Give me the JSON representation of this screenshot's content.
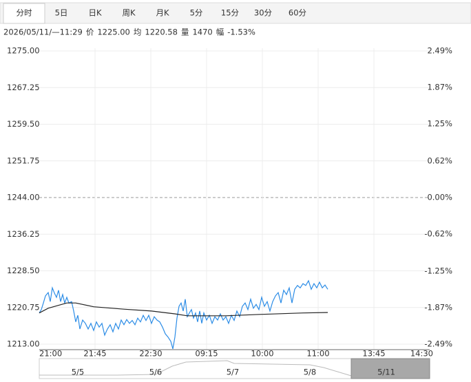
{
  "header": {
    "tabs": [
      "分时",
      "5日",
      "日K",
      "周K",
      "月K",
      "5分",
      "15分",
      "30分",
      "60分"
    ],
    "info": [
      "2026/05/11/—11:29",
      "价",
      "1225.00",
      "均",
      "1220.58",
      "量",
      "1470",
      "幅",
      "-1.53%"
    ]
  },
  "chart_data": {
    "type": "line",
    "series": [
      {
        "name": "价",
        "color": "#2b8ce6",
        "x": [
          0,
          0.037,
          0.074,
          0.111,
          0.16,
          0.198,
          0.235,
          0.272,
          0.309,
          0.346,
          0.383,
          0.42,
          0.457,
          0.494,
          0.531,
          0.58,
          0.617,
          0.654,
          0.691,
          0.728,
          0.778,
          0.827,
          0.877,
          0.926,
          0.975,
          1.025,
          1.074,
          1.123,
          1.173,
          1.222,
          1.272,
          1.321,
          1.37,
          1.42,
          1.469,
          1.519,
          1.568,
          1.617,
          1.667,
          1.716,
          1.765,
          1.815,
          1.864,
          1.914,
          1.963,
          2.012,
          2.062,
          2.111,
          2.16,
          2.21,
          2.259,
          2.309,
          2.358,
          2.395,
          2.432,
          2.469,
          2.506,
          2.543,
          2.58,
          2.617,
          2.654,
          2.691,
          2.728,
          2.765,
          2.802,
          2.84,
          2.877,
          2.914,
          2.951,
          3.0,
          3.049,
          3.099,
          3.148,
          3.198,
          3.247,
          3.296,
          3.346,
          3.395,
          3.444,
          3.494,
          3.543,
          3.593,
          3.642,
          3.691,
          3.741,
          3.79,
          3.84,
          3.889,
          3.938,
          3.988,
          4.037,
          4.086,
          4.136,
          4.185,
          4.235,
          4.284,
          4.333,
          4.383,
          4.432,
          4.481,
          4.531,
          4.58,
          4.63,
          4.679,
          4.728,
          4.778,
          4.827,
          4.877,
          4.926,
          4.975,
          5.025,
          5.074,
          5.123,
          5.173
        ],
        "values": [
          1219.6,
          1220.3,
          1221.7,
          1223.2,
          1223.9,
          1222.0,
          1224.9,
          1223.8,
          1222.9,
          1224.4,
          1222.0,
          1223.5,
          1221.7,
          1222.9,
          1221.7,
          1222.0,
          1220.0,
          1217.7,
          1219.1,
          1216.2,
          1218.1,
          1217.4,
          1216.2,
          1217.4,
          1215.9,
          1217.7,
          1216.6,
          1217.4,
          1214.9,
          1216.2,
          1217.1,
          1215.6,
          1217.4,
          1216.2,
          1218.1,
          1217.1,
          1218.2,
          1217.4,
          1218.0,
          1217.1,
          1218.5,
          1217.7,
          1219.1,
          1218.0,
          1219.1,
          1217.4,
          1218.8,
          1218.1,
          1217.7,
          1216.6,
          1215.2,
          1214.5,
          1213.6,
          1212.0,
          1214.5,
          1218.5,
          1221.0,
          1221.7,
          1220.0,
          1222.5,
          1218.8,
          1219.6,
          1220.3,
          1218.5,
          1219.6,
          1217.7,
          1220.0,
          1217.4,
          1219.6,
          1218.1,
          1219.1,
          1217.4,
          1218.8,
          1218.1,
          1219.4,
          1218.1,
          1218.8,
          1217.4,
          1219.1,
          1218.0,
          1220.0,
          1218.8,
          1221.0,
          1221.7,
          1220.3,
          1222.5,
          1220.6,
          1221.4,
          1220.3,
          1222.9,
          1221.0,
          1222.0,
          1220.0,
          1222.0,
          1223.2,
          1223.9,
          1221.7,
          1224.4,
          1223.5,
          1224.9,
          1221.7,
          1224.6,
          1225.4,
          1224.9,
          1225.8,
          1225.4,
          1226.4,
          1224.6,
          1225.8,
          1224.9,
          1226.1,
          1224.9,
          1225.5,
          1224.6
        ]
      },
      {
        "name": "均",
        "color": "#222222",
        "x": [
          0,
          0.16,
          0.494,
          0.654,
          0.975,
          1.519,
          2.012,
          2.432,
          2.654,
          3.346,
          3.988,
          4.728,
          5.173
        ],
        "values": [
          1219.6,
          1220.6,
          1221.7,
          1221.7,
          1220.9,
          1220.4,
          1220.0,
          1219.4,
          1219.0,
          1219.0,
          1219.3,
          1219.6,
          1219.7
        ]
      }
    ],
    "baseline": 1244,
    "up_color": "#e00000",
    "down_color": "#009900",
    "grid": true,
    "ylim": [
      1213,
      1275
    ],
    "yticks": [
      {
        "value": 1275,
        "label": "1275.00"
      },
      {
        "value": 1267.25,
        "label": "1267.25"
      },
      {
        "value": 1259.5,
        "label": "1259.50"
      },
      {
        "value": 1251.75,
        "label": "1251.75"
      },
      {
        "value": 1244,
        "label": "1244.00"
      },
      {
        "value": 1236.25,
        "label": "1236.25"
      },
      {
        "value": 1228.5,
        "label": "1228.50"
      },
      {
        "value": 1220.75,
        "label": "1220.75"
      },
      {
        "value": 1213,
        "label": "1213.00"
      }
    ],
    "y2lim": [
      -2.49,
      2.49
    ],
    "y2ticks": [
      {
        "value": 2.49,
        "label": "2.49%"
      },
      {
        "value": 1.87,
        "label": "1.87%"
      },
      {
        "value": 1.25,
        "label": "1.25%"
      },
      {
        "value": 0.62,
        "label": "0.62%"
      },
      {
        "value": 0,
        "label": "0.00%"
      },
      {
        "value": -0.62,
        "label": "-0.62%"
      },
      {
        "value": -1.25,
        "label": "-1.25%"
      },
      {
        "value": -1.87,
        "label": "-1.87%"
      },
      {
        "value": -2.49,
        "label": "-2.49%"
      }
    ],
    "xlim": [
      0,
      7
    ],
    "xticks": [
      {
        "value": 0,
        "label": "21:00"
      },
      {
        "value": 1,
        "label": "21:45"
      },
      {
        "value": 2,
        "label": "22:30"
      },
      {
        "value": 3,
        "label": "09:15"
      },
      {
        "value": 4,
        "label": "10:00"
      },
      {
        "value": 5,
        "label": "11:00"
      },
      {
        "value": 6,
        "label": "13:45"
      },
      {
        "value": 7,
        "label": "14:30"
      }
    ],
    "navigator": [
      "5/5",
      "5/6",
      "5/7",
      "5/8",
      "5/11"
    ]
  }
}
